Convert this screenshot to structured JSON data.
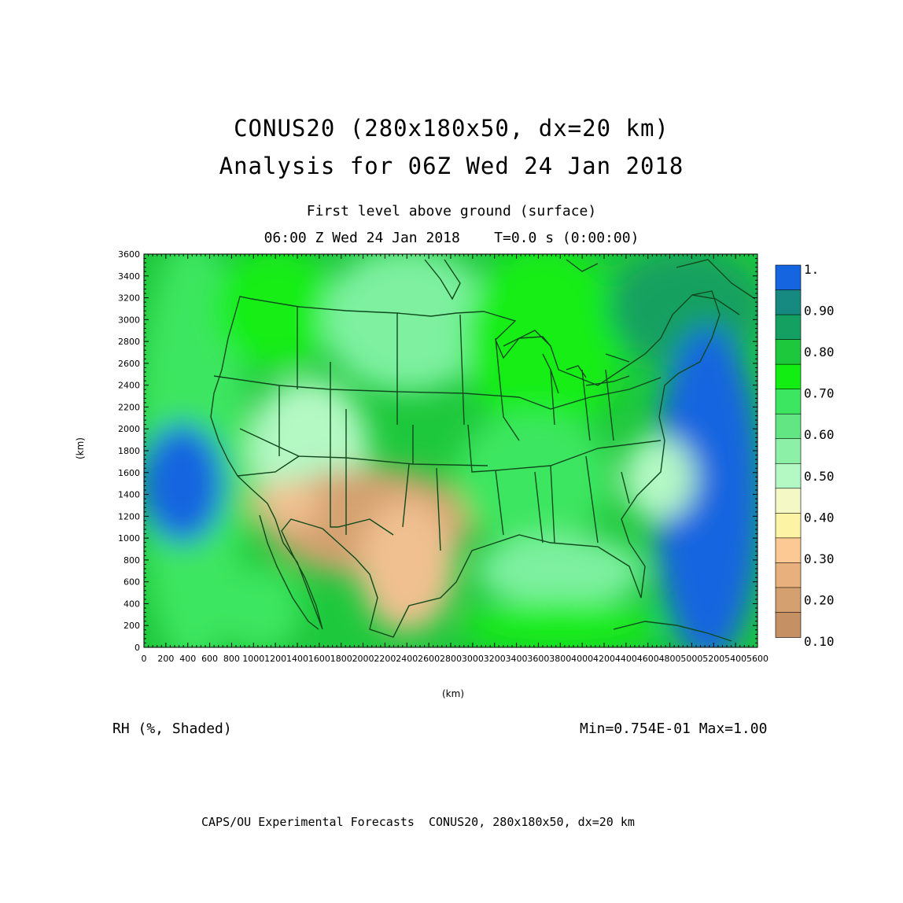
{
  "header": {
    "title_line1": "CONUS20 (280x180x50, dx=20 km)",
    "title_line2": "Analysis for 06Z Wed 24 Jan 2018",
    "level": "First level above ground (surface)",
    "time": "06:00 Z Wed 24 Jan 2018    T=0.0 s (0:00:00)"
  },
  "axes": {
    "xlabel": "(km)",
    "ylabel": "(km)",
    "x_ticks": [
      "0",
      "200",
      "400",
      "600",
      "800",
      "1000",
      "1200",
      "1400",
      "1600",
      "1800",
      "2000",
      "2200",
      "2400",
      "2600",
      "2800",
      "3000",
      "3200",
      "3400",
      "3600",
      "3800",
      "4000",
      "4200",
      "4400",
      "4600",
      "4800",
      "5000",
      "5200",
      "5400",
      "5600"
    ],
    "y_ticks": [
      "0",
      "200",
      "400",
      "600",
      "800",
      "1000",
      "1200",
      "1400",
      "1600",
      "1800",
      "2000",
      "2200",
      "2400",
      "2600",
      "2800",
      "3000",
      "3200",
      "3400",
      "3600"
    ],
    "xlim": [
      0,
      5600
    ],
    "ylim": [
      0,
      3600
    ]
  },
  "colorbar": {
    "labels": [
      "1.",
      "0.90",
      "0.80",
      "0.70",
      "0.60",
      "0.50",
      "0.40",
      "0.30",
      "0.20",
      "0.10"
    ],
    "colors": [
      "#1565e0",
      "#168a80",
      "#14a060",
      "#1ec83c",
      "#12ee12",
      "#3ce660",
      "#62e684",
      "#8cf0a6",
      "#b4f8c4",
      "#f4f8c4",
      "#fcf4a4",
      "#fcc894",
      "#e8b07c",
      "#d4a070",
      "#c49064"
    ]
  },
  "field": {
    "variable": "RH (%, Shaded)",
    "min_max": "Min=0.754E-01 Max=1.00"
  },
  "footer": {
    "credit": "CAPS/OU Experimental Forecasts  CONUS20, 280x180x50, dx=20 km"
  },
  "chart_data": {
    "type": "heatmap",
    "variable": "RH (%, Shaded)",
    "xlabel": "(km)",
    "ylabel": "(km)",
    "xlim": [
      0,
      5600
    ],
    "ylim": [
      0,
      3600
    ],
    "min": 0.0754,
    "max": 1.0,
    "levels": [
      0.1,
      0.2,
      0.3,
      0.4,
      0.5,
      0.6,
      0.7,
      0.8,
      0.9,
      1.0
    ],
    "regions": [
      {
        "x": [
          0,
          900
        ],
        "y": [
          0,
          3600
        ],
        "value": 0.72
      },
      {
        "x": [
          700,
          1700
        ],
        "y": [
          2600,
          3600
        ],
        "value": 0.8
      },
      {
        "x": [
          1700,
          3100
        ],
        "y": [
          2400,
          3600
        ],
        "value": 0.62
      },
      {
        "x": [
          3000,
          4300
        ],
        "y": [
          2000,
          3600
        ],
        "value": 0.78
      },
      {
        "x": [
          4300,
          5600
        ],
        "y": [
          2600,
          3600
        ],
        "value": 0.85
      },
      {
        "x": [
          4700,
          5600
        ],
        "y": [
          0,
          2800
        ],
        "value": 0.97
      },
      {
        "x": [
          0,
          700
        ],
        "y": [
          1000,
          2000
        ],
        "value": 0.95
      },
      {
        "x": [
          1000,
          2000
        ],
        "y": [
          1200,
          2400
        ],
        "value": 0.52
      },
      {
        "x": [
          1200,
          2900
        ],
        "y": [
          700,
          1600
        ],
        "value": 0.22
      },
      {
        "x": [
          1000,
          1600
        ],
        "y": [
          1100,
          1500
        ],
        "value": 0.28
      },
      {
        "x": [
          2000,
          2800
        ],
        "y": [
          200,
          1300
        ],
        "value": 0.32
      },
      {
        "x": [
          2900,
          4200
        ],
        "y": [
          1000,
          2100
        ],
        "value": 0.74
      },
      {
        "x": [
          3100,
          4500
        ],
        "y": [
          400,
          1000
        ],
        "value": 0.58
      },
      {
        "x": [
          4400,
          5000
        ],
        "y": [
          1200,
          1900
        ],
        "value": 0.45
      },
      {
        "x": [
          3000,
          4600
        ],
        "y": [
          0,
          400
        ],
        "value": 0.82
      },
      {
        "x": [
          700,
          1400
        ],
        "y": [
          0,
          700
        ],
        "value": 0.68
      }
    ]
  }
}
